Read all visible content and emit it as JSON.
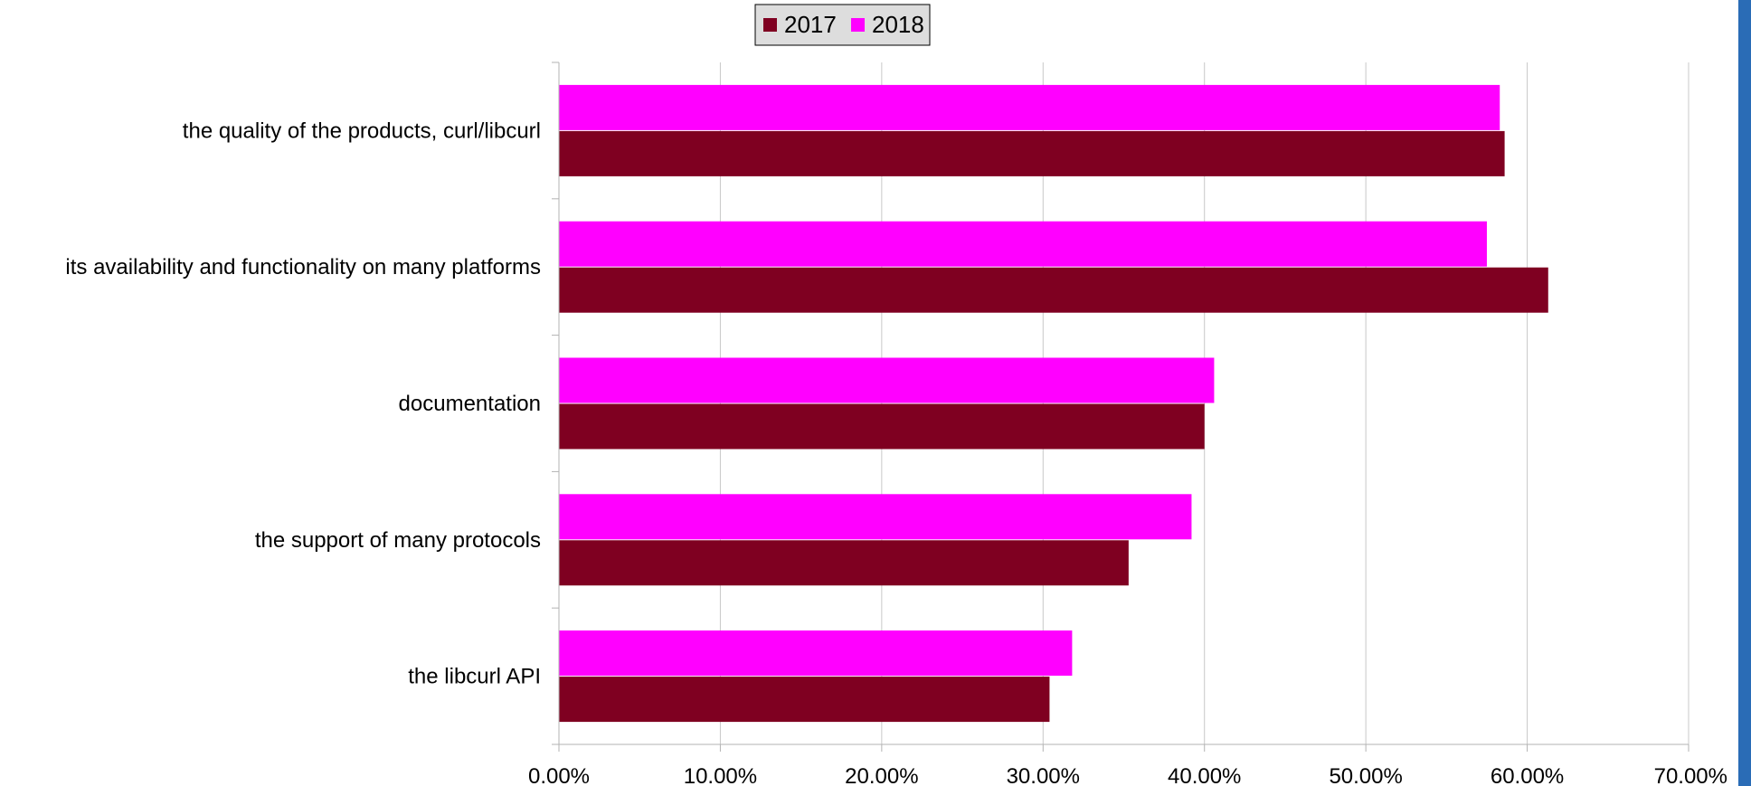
{
  "colors": {
    "series_2017": "#7f0021",
    "series_2018": "#ff00ff",
    "gridline": "#c8c8c8",
    "axis": "#b3b3b3",
    "legend_bg": "#dddddd",
    "right_edge": "#2a6cb6"
  },
  "chart_data": {
    "type": "bar",
    "orientation": "horizontal",
    "categories": [
      "the quality of the products, curl/libcurl",
      "its availability and functionality on many platforms",
      "documentation",
      "the support of many protocols",
      "the libcurl API"
    ],
    "series": [
      {
        "name": "2017",
        "values": [
          58.6,
          61.3,
          40.0,
          35.3,
          30.4
        ]
      },
      {
        "name": "2018",
        "values": [
          58.3,
          57.5,
          40.6,
          39.2,
          31.8
        ]
      }
    ],
    "x_ticks": [
      "0.00%",
      "10.00%",
      "20.00%",
      "30.00%",
      "40.00%",
      "50.00%",
      "60.00%",
      "70.00%"
    ],
    "xlim": [
      0,
      70
    ],
    "grid": true,
    "legend_position": "top",
    "title": "",
    "xlabel": "",
    "ylabel": ""
  }
}
